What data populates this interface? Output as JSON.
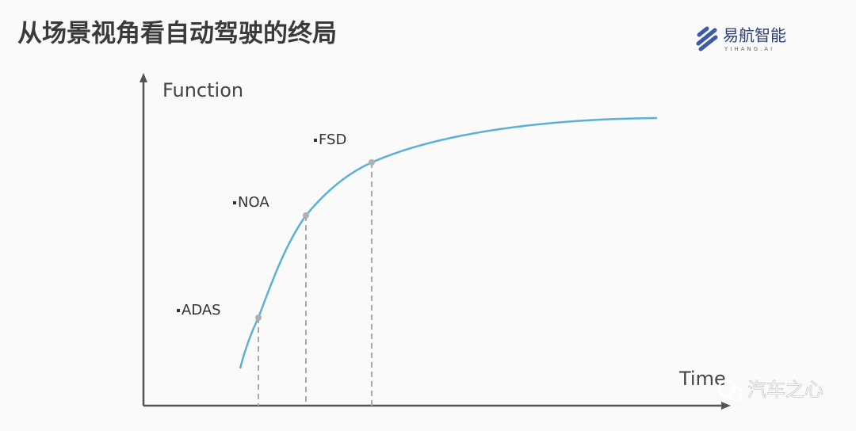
{
  "header": {
    "title": "从场景视角看自动驾驶的终局",
    "logo_name": "易航智能",
    "logo_sub": "YIHANG.AI"
  },
  "diagram": {
    "y_axis_label": "Function",
    "x_axis_label": "Time",
    "stages": [
      {
        "label": "ADAS"
      },
      {
        "label": "NOA"
      },
      {
        "label": "FSD"
      }
    ]
  },
  "watermark": "汽车之心"
}
